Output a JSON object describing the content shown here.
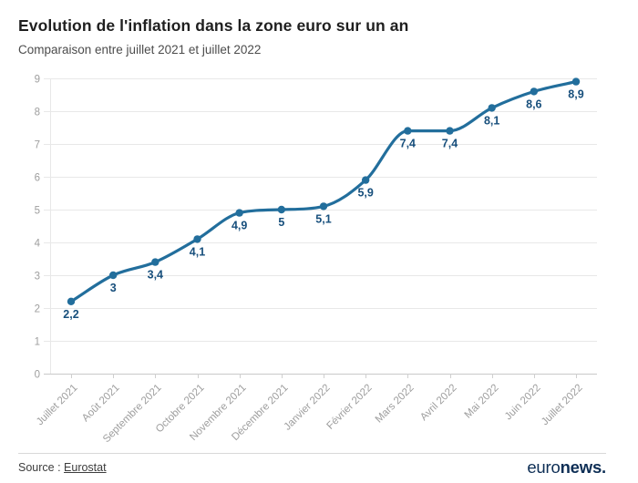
{
  "header": {
    "title": "Evolution de l'inflation dans la zone euro sur un an",
    "subtitle": "Comparaison entre juillet 2021 et juillet 2022"
  },
  "chart_data": {
    "type": "line",
    "title": "Evolution de l'inflation dans la zone euro sur un an",
    "subtitle": "Comparaison entre juillet 2021 et juillet 2022",
    "categories": [
      "Juillet 2021",
      "Août 2021",
      "Septembre 2021",
      "Octobre 2021",
      "Novembre 2021",
      "Décembre 2021",
      "Janvier 2022",
      "Février 2022",
      "Mars 2022",
      "Avril 2022",
      "Mai 2022",
      "Juin 2022",
      "Juillet 2022"
    ],
    "values": [
      2.2,
      3,
      3.4,
      4.1,
      4.9,
      5,
      5.1,
      5.9,
      7.4,
      7.4,
      8.1,
      8.6,
      8.9
    ],
    "value_labels": [
      "2,2",
      "3",
      "3,4",
      "4,1",
      "4,9",
      "5",
      "5,1",
      "5,9",
      "7,4",
      "7,4",
      "8,1",
      "8,6",
      "8,9"
    ],
    "xlabel": "",
    "ylabel": "",
    "ylim": [
      0,
      9
    ],
    "ytick_step": 1,
    "grid": true,
    "legend": false,
    "colors": {
      "line": "#226e9c",
      "point": "#226e9c",
      "value_label": "#174f7c",
      "grid": "#e8e8e8",
      "baseline": "#c9c9c9",
      "tick": "#cfcfcf",
      "axis_text": "#9e9e9e"
    }
  },
  "footer": {
    "source_prefix": "Source : ",
    "source_link_label": "Eurostat",
    "brand_light": "euro",
    "brand_bold": "news."
  }
}
